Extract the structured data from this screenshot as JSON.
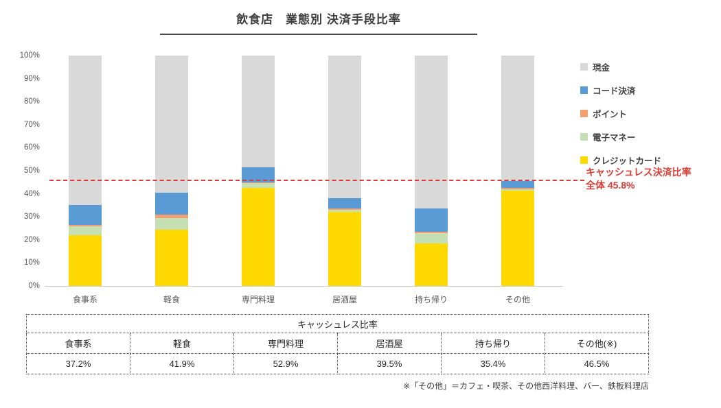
{
  "title": "飲食店　業態別 決済手段比率",
  "chart_data": {
    "type": "bar",
    "stacked": true,
    "unit": "%",
    "title": "飲食店　業態別 決済手段比率",
    "categories": [
      "食事系",
      "軽食",
      "専門料理",
      "居酒屋",
      "持ち帰り",
      "その他"
    ],
    "series": [
      {
        "name": "クレジットカード",
        "color": "#ffd900",
        "values": [
          22,
          24.5,
          42.5,
          32,
          18.5,
          41.5
        ]
      },
      {
        "name": "電子マネー",
        "color": "#c6e0b4",
        "values": [
          4,
          5,
          2,
          1,
          4.5,
          0.5
        ]
      },
      {
        "name": "ポイント",
        "color": "#f2a06f",
        "values": [
          0.5,
          1.5,
          0.5,
          0.5,
          0.5,
          0.5
        ]
      },
      {
        "name": "コード決済",
        "color": "#5b9bd5",
        "values": [
          8.5,
          9.5,
          6.5,
          4.5,
          10,
          3
        ]
      },
      {
        "name": "現金",
        "color": "#d9d9d9",
        "values": [
          65,
          59.5,
          48.5,
          62,
          66.5,
          54.5
        ]
      }
    ],
    "legend_order": [
      "現金",
      "コード決済",
      "ポイント",
      "電子マネー",
      "クレジットカード"
    ],
    "y_ticks": [
      "100%",
      "90%",
      "80%",
      "70%",
      "60%",
      "50%",
      "40%",
      "30%",
      "20%",
      "10%",
      "0%"
    ],
    "ylim": [
      0,
      100
    ],
    "grid": false,
    "legend_position": "right",
    "reference_line": {
      "value": 45.8,
      "color": "#dd3b35",
      "label_line1": "キャッシュレス決済比率",
      "label_line2": "全体 45.8%"
    }
  },
  "table": {
    "title": "キャッシュレス比率",
    "columns": [
      "食事系",
      "軽食",
      "専門料理",
      "居酒屋",
      "持ち帰り",
      "その他(※)"
    ],
    "values": [
      "37.2%",
      "41.9%",
      "52.9%",
      "39.5%",
      "35.4%",
      "46.5%"
    ]
  },
  "footnote": "※「その他」＝カフェ・喫茶、その他西洋料理、バー、鉄板料理店"
}
